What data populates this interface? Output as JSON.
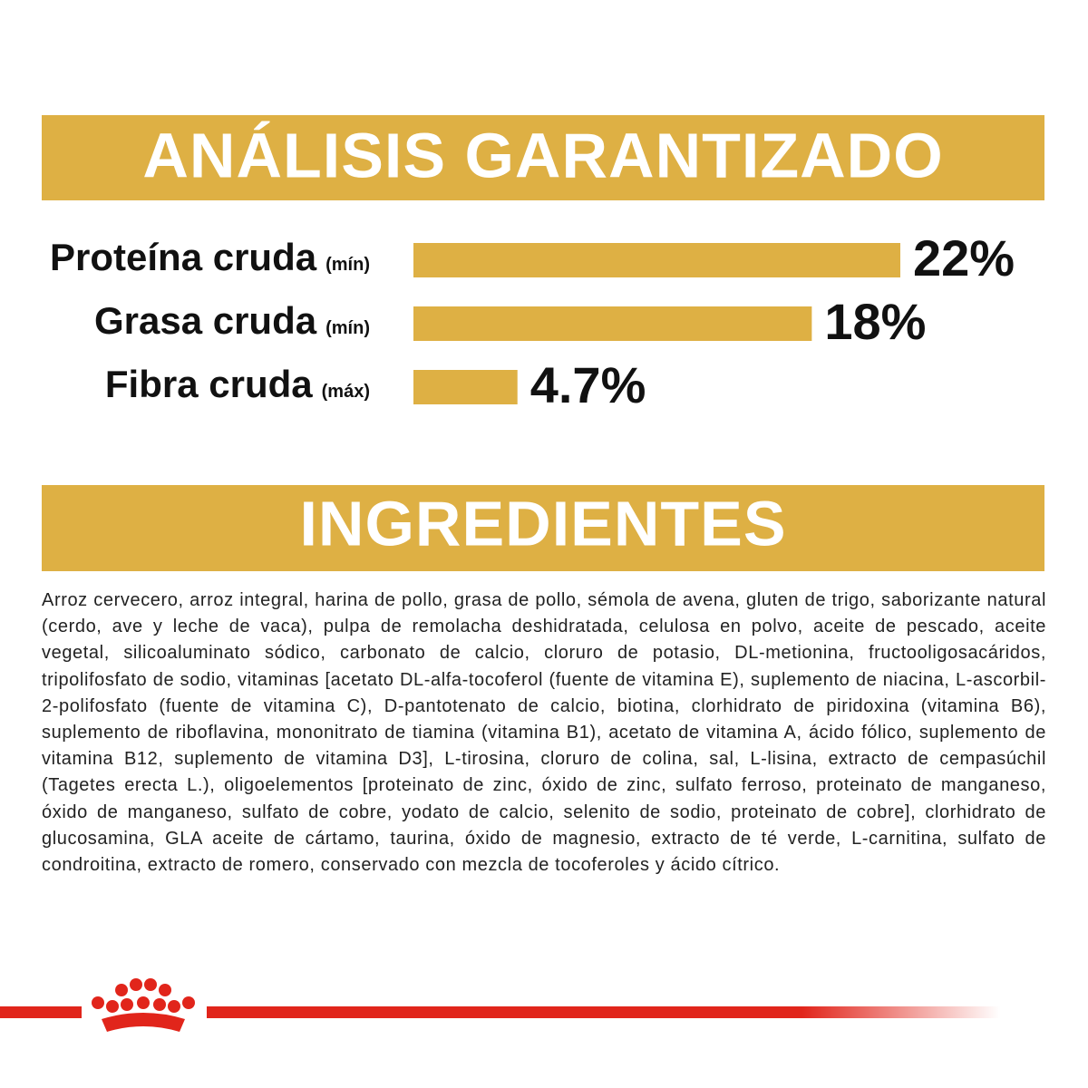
{
  "chart_data": {
    "type": "bar",
    "title": "ANÁLISIS GARANTIZADO",
    "categories": [
      "Proteína cruda",
      "Grasa cruda",
      "Fibra cruda"
    ],
    "qualifiers": [
      "(mín)",
      "(mín)",
      "(máx)"
    ],
    "values": [
      22,
      18,
      4.7
    ],
    "value_labels": [
      "22%",
      "18%",
      "4.7%"
    ],
    "color": "#deb044"
  },
  "ingredients": {
    "title": "INGREDIENTES",
    "text": "Arroz cervecero, arroz integral, harina de pollo, grasa de pollo, sémola de avena, gluten de trigo, saborizante natural (cerdo, ave y leche de vaca), pulpa de remolacha deshidratada, celulosa en polvo, aceite de pescado, aceite vegetal, silicoaluminato sódico, carbonato de calcio, cloruro de potasio, DL-metionina, fructooligosacáridos, tripolifosfato de sodio, vitaminas [acetato DL-alfa-tocoferol (fuente de vitamina E), suplemento de niacina, L-ascorbil-2-polifosfato (fuente de vitamina C), D-pantotenato de calcio, biotina, clorhidrato de piridoxina (vitamina B6), suplemento de riboflavina, mononitrato de tiamina (vitamina B1), acetato de vitamina A, ácido fólico, suplemento de vitamina B12, suplemento de vitamina D3], L-tirosina, cloruro de colina, sal, L-lisina, extracto de cempasúchil (Tagetes erecta L.), oligoelementos [proteinato de zinc, óxido de zinc, sulfato ferroso, proteinato de manganeso, óxido de manganeso, sulfato de cobre, yodato de calcio, selenito de sodio, proteinato de cobre], clorhidrato de glucosamina, GLA aceite de cártamo, taurina, óxido de magnesio, extracto de té verde, L-carnitina, sulfato de condroitina, extracto de romero, conservado con mezcla de tocoferoles y ácido cítrico."
  }
}
